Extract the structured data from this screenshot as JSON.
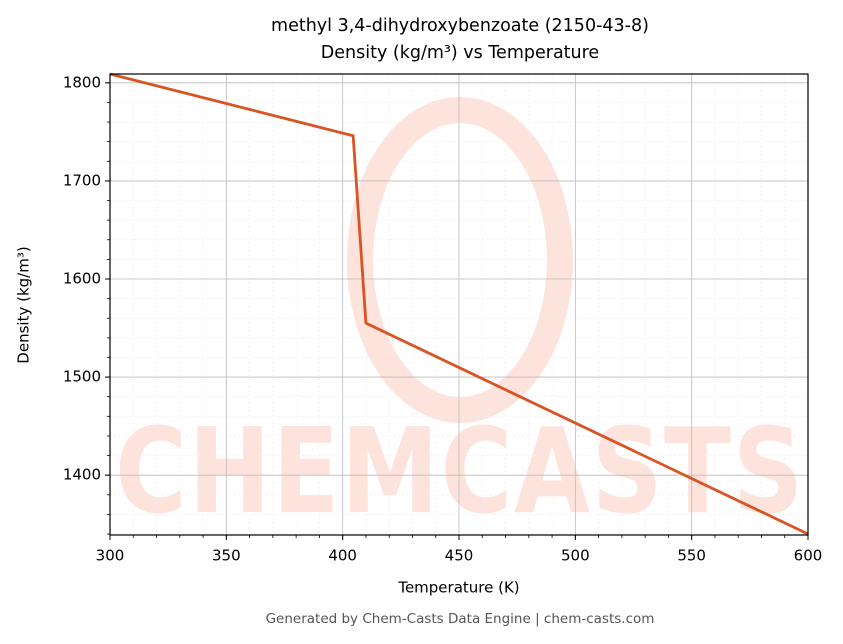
{
  "chart_data": {
    "type": "line",
    "title": "methyl 3,4-dihydroxybenzoate (2150-43-8)",
    "subtitle": "Density (kg/m³) vs Temperature",
    "x_label": "Temperature (K)",
    "y_label": "Density (kg/m³)",
    "footer": "Generated by Chem-Casts Data Engine | chem-casts.com",
    "x": [
      300,
      404.5,
      410,
      600
    ],
    "series": [
      {
        "name": "Density",
        "color": "#d95323",
        "values": [
          1809,
          1746,
          1555,
          1340
        ]
      }
    ],
    "xlim": [
      300,
      600
    ],
    "xticks": [
      300,
      350,
      400,
      450,
      500,
      550,
      600
    ],
    "ylim": [
      1339,
      1809
    ],
    "yticks": [
      1400,
      1500,
      1600,
      1700,
      1800
    ],
    "grid": true
  }
}
